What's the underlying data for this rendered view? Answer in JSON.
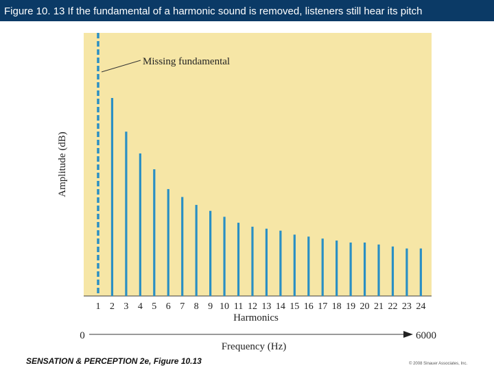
{
  "title": "Figure 10. 13 If the fundamental of a harmonic sound is removed, listeners still hear its pitch",
  "footer": {
    "source": "SENSATION & PERCEPTION 2e, Figure 10.13",
    "copyright": "© 2008 Sinauer Associates, Inc."
  },
  "colors": {
    "title_bg": "#0b3a66",
    "plot_bg": "#f6e6a6",
    "bar": "#2a8fc4"
  },
  "chart_data": {
    "type": "bar",
    "xlabel": "Harmonics",
    "ylabel": "Amplitude (dB)",
    "categories": [
      "1",
      "2",
      "3",
      "4",
      "5",
      "6",
      "7",
      "8",
      "9",
      "10",
      "11",
      "12",
      "13",
      "14",
      "15",
      "16",
      "17",
      "18",
      "19",
      "20",
      "21",
      "22",
      "23",
      "24"
    ],
    "values": [
      null,
      100,
      83,
      72,
      64,
      54,
      50,
      46,
      43,
      40,
      37,
      35,
      34,
      33,
      31,
      30,
      29,
      28,
      27,
      27,
      26,
      25,
      24,
      24
    ],
    "missing_category": "1",
    "annotation": "Missing fundamental",
    "frequency_axis": {
      "label": "Frequency (Hz)",
      "min_label": "0",
      "max_label": "6000"
    }
  }
}
